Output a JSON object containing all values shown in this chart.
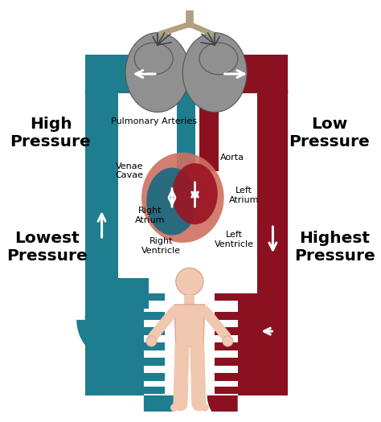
{
  "background_color": "#ffffff",
  "teal_color": "#1e7d8e",
  "red_color": "#8b1020",
  "lung_color": "#909090",
  "lung_dark": "#606060",
  "heart_outer_color": "#d07060",
  "heart_right_color": "#1a6a80",
  "heart_left_color": "#9b1525",
  "body_color": "#f0c8b0",
  "body_outline": "#d0a090",
  "white": "#ffffff",
  "black": "#000000",
  "labels": {
    "high_pressure": "High\nPressure",
    "low_pressure": "Low\nPressure",
    "lowest_pressure": "Lowest\nPressure",
    "highest_pressure": "Highest\nPressure",
    "pulmonary_arteries": "Pulmonary Arteries",
    "venae_cavae": "Venae\nCavae",
    "aorta": "Aorta",
    "left_atrium": "Left\nAtrium",
    "right_atrium": "Right\nAtrium",
    "right_ventricle": "Right\nVentricle",
    "left_ventricle": "Left\nVentricle"
  },
  "figsize": [
    4.74,
    5.25
  ],
  "dpi": 100
}
